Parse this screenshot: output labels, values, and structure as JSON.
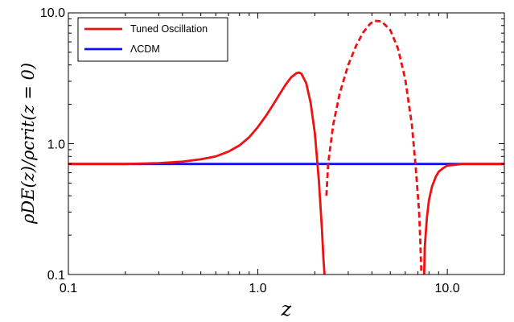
{
  "chart_data": {
    "type": "line",
    "title": "",
    "xlabel": "z",
    "ylabel": "ρDE(z)/ρcrit(z = 0)",
    "xscale": "log",
    "yscale": "log",
    "xlim": [
      0.1,
      20
    ],
    "ylim": [
      0.1,
      10
    ],
    "x_ticks": [
      0.1,
      1.0,
      10.0
    ],
    "x_tick_labels": [
      "0.1",
      "1.0",
      "10.0"
    ],
    "y_ticks": [
      0.1,
      1.0,
      10.0
    ],
    "y_tick_labels": [
      "0.1",
      "1.0",
      "10.0"
    ],
    "grid": false,
    "legend_position": "top-left",
    "series": [
      {
        "name": "Tuned Oscillation",
        "color": "#ee1111",
        "segments": [
          {
            "style": "solid",
            "x": [
              0.1,
              0.2,
              0.3,
              0.4,
              0.5,
              0.6,
              0.7,
              0.8,
              0.9,
              1.0,
              1.1,
              1.2,
              1.3,
              1.4,
              1.5,
              1.6,
              1.65,
              1.7,
              1.8,
              1.9,
              2.0,
              2.1,
              2.18,
              2.22,
              2.25
            ],
            "y": [
              0.7,
              0.7,
              0.71,
              0.73,
              0.76,
              0.8,
              0.87,
              0.97,
              1.12,
              1.34,
              1.62,
              1.97,
              2.38,
              2.82,
              3.22,
              3.46,
              3.5,
              3.42,
              2.9,
              2.05,
              1.2,
              0.52,
              0.22,
              0.13,
              0.1
            ]
          },
          {
            "style": "dashed",
            "x": [
              2.3,
              2.35,
              2.5,
              2.7,
              3.0,
              3.3,
              3.6,
              3.9,
              4.1,
              4.5,
              5.0,
              5.5,
              6.0,
              6.5,
              6.8,
              7.1
            ],
            "y": [
              0.4,
              0.7,
              1.4,
              2.4,
              4.0,
              5.6,
              7.1,
              8.2,
              8.7,
              8.6,
              7.4,
              5.3,
              3.1,
              1.4,
              0.68,
              0.3
            ]
          },
          {
            "style": "dashed",
            "x": [
              7.1,
              7.2,
              7.3
            ],
            "y": [
              0.3,
              0.18,
              0.1
            ]
          },
          {
            "style": "solid",
            "x": [
              7.55,
              7.6,
              7.8,
              8.0,
              8.3,
              8.7,
              9.0,
              9.5,
              10.0,
              11.0,
              12.0,
              15.0,
              20.0
            ],
            "y": [
              0.1,
              0.16,
              0.27,
              0.37,
              0.47,
              0.56,
              0.61,
              0.65,
              0.68,
              0.69,
              0.7,
              0.7,
              0.7
            ]
          }
        ]
      },
      {
        "name": "ΛCDM",
        "color": "#1111ee",
        "segments": [
          {
            "style": "solid",
            "x": [
              0.1,
              20
            ],
            "y": [
              0.7,
              0.7
            ]
          }
        ]
      }
    ]
  }
}
